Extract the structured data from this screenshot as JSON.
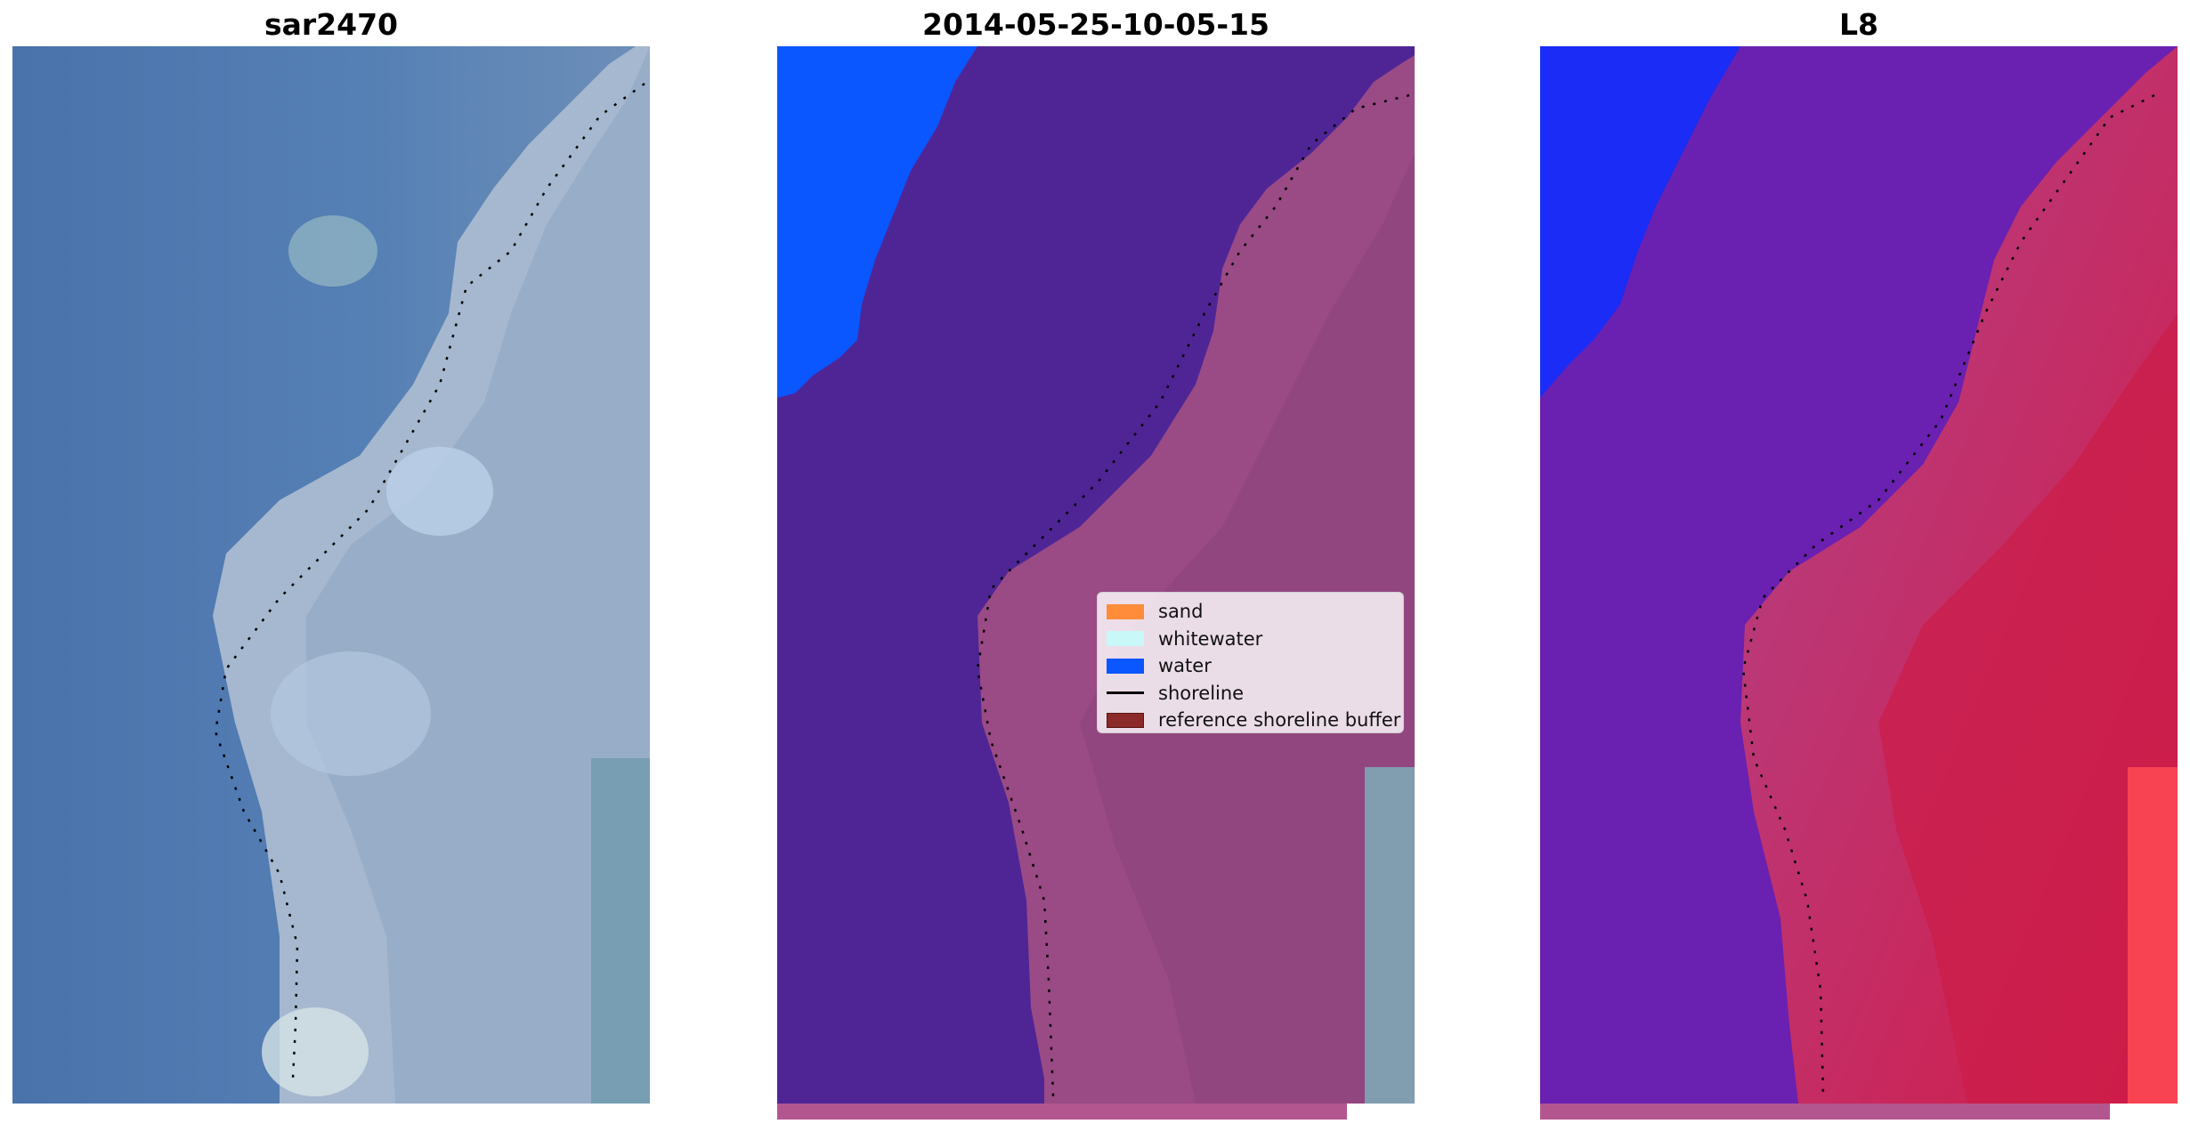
{
  "panels": [
    {
      "title": "sar2470",
      "kind": "rgb-image"
    },
    {
      "title": "2014-05-25-10-05-15",
      "kind": "classified-image"
    },
    {
      "title": "L8",
      "kind": "index-image"
    }
  ],
  "legend": {
    "items": [
      {
        "label": "sand",
        "color": "#ff8c3b",
        "type": "patch"
      },
      {
        "label": "whitewater",
        "color": "#c8f8f8",
        "type": "patch"
      },
      {
        "label": "water",
        "color": "#0a56ff",
        "type": "patch"
      },
      {
        "label": "shoreline",
        "color": "#000000",
        "type": "line"
      },
      {
        "label": "reference shoreline buffer",
        "color": "#8c2a2a",
        "type": "patch"
      }
    ]
  },
  "colors": {
    "water_class": "#0a56ff",
    "sea_purple": "#4f2596",
    "land_mauve": "#9a4a85",
    "buffer_band": "#b3568f",
    "rgb_sea": "#4b74ae",
    "rgb_land": "#9fb4cc",
    "index_low": "#6a20b0",
    "index_high": "#d01c4c"
  }
}
